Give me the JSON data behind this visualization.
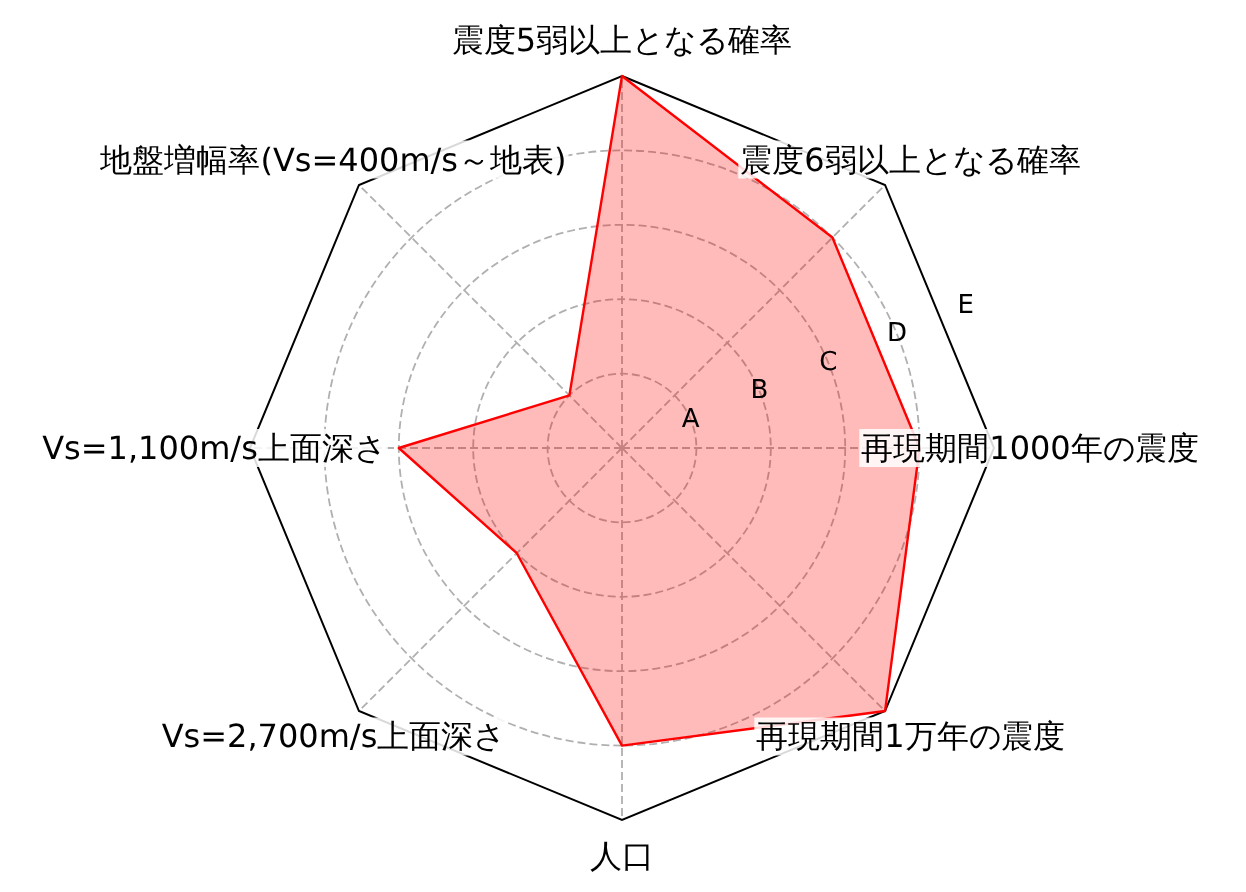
{
  "chart_data": {
    "type": "radar",
    "categories": [
      "震度5弱以上となる確率",
      "震度6弱以上となる確率",
      "再現期間1000年の震度",
      "再現期間1万年の震度",
      "人口",
      "Vs=2,700m/s上面深さ",
      "Vs=1,100m/s上面深さ",
      "地盤増幅率(Vs=400m/s～地表)"
    ],
    "series": [
      {
        "color": "#ff0000",
        "values": [
          5,
          4,
          4,
          5,
          4,
          2,
          3,
          1
        ]
      }
    ],
    "ylim": [
      0,
      5
    ],
    "yticks": [
      {
        "value": 1,
        "label": "A"
      },
      {
        "value": 2,
        "label": "B"
      },
      {
        "value": 3,
        "label": "C"
      },
      {
        "value": 4,
        "label": "D"
      },
      {
        "value": 5,
        "label": "E"
      }
    ],
    "grid": true
  }
}
